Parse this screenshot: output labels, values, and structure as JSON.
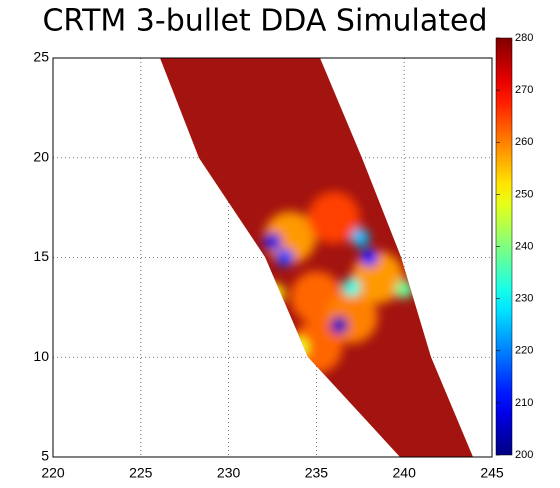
{
  "chart_data": {
    "type": "scatter",
    "title": "CRTM 3-bullet DDA Simulated",
    "xlim": [
      220,
      245
    ],
    "xticks": [
      220,
      225,
      230,
      235,
      240,
      245
    ],
    "ylim": [
      5,
      25
    ],
    "yticks": [
      5,
      10,
      15,
      20,
      25
    ],
    "grid": true,
    "clim": [
      200,
      280
    ],
    "cticks": [
      200,
      210,
      220,
      230,
      240,
      250,
      260,
      270,
      280
    ],
    "x": [
      235,
      237,
      233.5,
      238.5,
      235,
      236,
      232.5,
      233.2,
      238,
      237.5,
      236.3,
      237,
      240,
      234,
      232.6
    ],
    "y": [
      13,
      12,
      16,
      14,
      10.5,
      17,
      15.8,
      15,
      15,
      16,
      11.6,
      13.5,
      13.4,
      10.5,
      13.2
    ],
    "values": [
      262,
      260,
      258,
      258,
      262,
      265,
      208,
      215,
      210,
      225,
      205,
      232,
      238,
      248,
      250
    ]
  }
}
